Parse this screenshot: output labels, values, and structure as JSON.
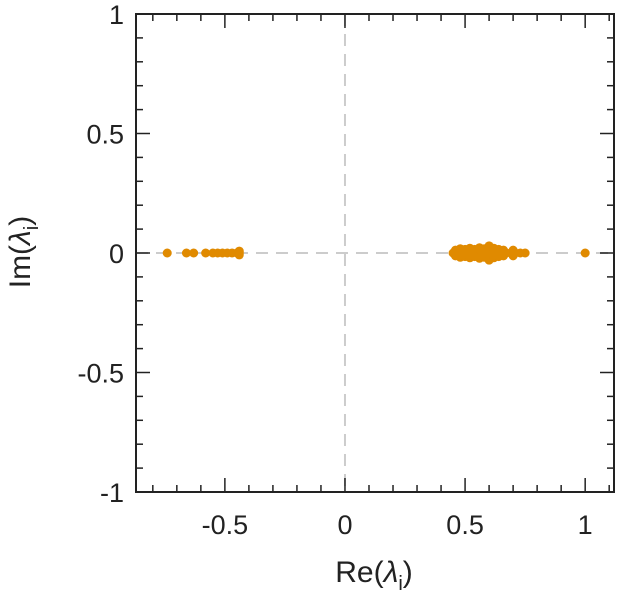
{
  "chart_data": {
    "type": "scatter",
    "xlim": [
      -0.87,
      1.12
    ],
    "ylim": [
      -1,
      1
    ],
    "x_ticks": [
      -0.5,
      0,
      0.5,
      1
    ],
    "x_tick_labels": [
      "-0.5",
      "0",
      "0.5",
      "1"
    ],
    "y_ticks": [
      -1,
      -0.5,
      0,
      0.5,
      1
    ],
    "y_tick_labels": [
      "-1",
      "-0.5",
      "0",
      "0.5",
      "1"
    ],
    "xlabel": {
      "prefix": "Re(",
      "symbol": "λ",
      "subscript": "i",
      "suffix": ")"
    },
    "ylabel": {
      "prefix": "Im(",
      "symbol": "λ",
      "subscript": "i",
      "suffix": ")"
    },
    "grid": false,
    "reference_lines": {
      "x0": true,
      "y0": true,
      "style": "dashed"
    },
    "marker_color": "#E08A00",
    "series": [
      {
        "points": [
          [
            -0.74,
            0
          ],
          [
            -0.66,
            0
          ],
          [
            -0.63,
            0
          ],
          [
            -0.58,
            0
          ],
          [
            -0.55,
            0
          ],
          [
            -0.53,
            0
          ],
          [
            -0.51,
            0
          ],
          [
            -0.49,
            0
          ],
          [
            -0.47,
            0
          ],
          [
            -0.45,
            0
          ],
          [
            -0.44,
            0
          ],
          [
            -0.44,
            0.008
          ],
          [
            -0.44,
            -0.008
          ],
          [
            0.45,
            0
          ],
          [
            0.46,
            0
          ],
          [
            0.47,
            0
          ],
          [
            0.48,
            0
          ],
          [
            0.49,
            0
          ],
          [
            0.5,
            0
          ],
          [
            0.51,
            0
          ],
          [
            0.52,
            0
          ],
          [
            0.53,
            0
          ],
          [
            0.54,
            0
          ],
          [
            0.55,
            0
          ],
          [
            0.56,
            0
          ],
          [
            0.57,
            0
          ],
          [
            0.58,
            0
          ],
          [
            0.59,
            0
          ],
          [
            0.6,
            0
          ],
          [
            0.61,
            0
          ],
          [
            0.62,
            0
          ],
          [
            0.63,
            0
          ],
          [
            0.64,
            0
          ],
          [
            0.65,
            0
          ],
          [
            0.67,
            0
          ],
          [
            0.69,
            0
          ],
          [
            0.71,
            0
          ],
          [
            0.73,
            0
          ],
          [
            0.75,
            0
          ],
          [
            0.46,
            0.012
          ],
          [
            0.48,
            0.018
          ],
          [
            0.5,
            0.015
          ],
          [
            0.52,
            0.02
          ],
          [
            0.54,
            0.015
          ],
          [
            0.56,
            0.022
          ],
          [
            0.58,
            0.018
          ],
          [
            0.6,
            0.03
          ],
          [
            0.62,
            0.02
          ],
          [
            0.64,
            0.015
          ],
          [
            0.66,
            0.012
          ],
          [
            0.7,
            0.012
          ],
          [
            0.46,
            -0.012
          ],
          [
            0.48,
            -0.018
          ],
          [
            0.5,
            -0.015
          ],
          [
            0.52,
            -0.02
          ],
          [
            0.54,
            -0.015
          ],
          [
            0.56,
            -0.022
          ],
          [
            0.58,
            -0.018
          ],
          [
            0.6,
            -0.03
          ],
          [
            0.62,
            -0.02
          ],
          [
            0.64,
            -0.015
          ],
          [
            0.66,
            -0.012
          ],
          [
            0.7,
            -0.012
          ],
          [
            1.0,
            0
          ]
        ]
      }
    ]
  }
}
